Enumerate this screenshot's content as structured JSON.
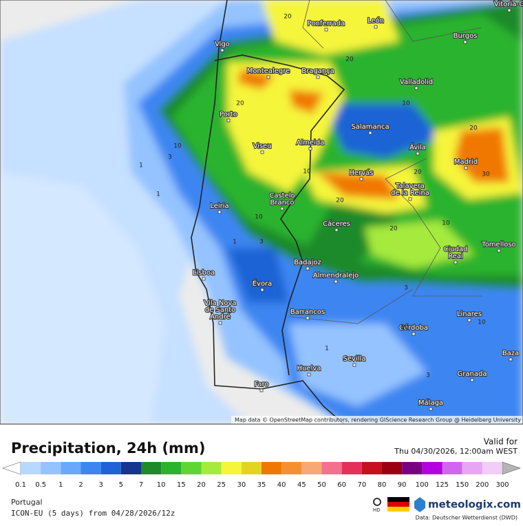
{
  "header": {
    "title": "Precipitation, 24h (mm)",
    "valid_label": "Valid for",
    "valid_time": "Thu 04/30/2026, 12:00am WEST"
  },
  "map": {
    "attribution": "Map data © OpenStreetMap contributors, rendering GIScience Research Group @ Heidelberg University",
    "cities": [
      {
        "lines": [
          "Vitoria-G"
        ]
      },
      {
        "lines": [
          "Ponferrada"
        ]
      },
      {
        "lines": [
          "León"
        ]
      },
      {
        "lines": [
          "Vigo"
        ]
      },
      {
        "lines": [
          "Burgos"
        ]
      },
      {
        "lines": [
          "Montealegre"
        ]
      },
      {
        "lines": [
          "Bragança"
        ]
      },
      {
        "lines": [
          "Valladolid"
        ]
      },
      {
        "lines": [
          "Porto"
        ]
      },
      {
        "lines": [
          "Salamanca"
        ]
      },
      {
        "lines": [
          "Viseu"
        ]
      },
      {
        "lines": [
          "Almeida"
        ]
      },
      {
        "lines": [
          "Ávila"
        ]
      },
      {
        "lines": [
          "Madrid"
        ]
      },
      {
        "lines": [
          "Hervás"
        ]
      },
      {
        "lines": [
          "Talavera",
          "de la Reina"
        ]
      },
      {
        "lines": [
          "Castelo",
          "Branco"
        ]
      },
      {
        "lines": [
          "Leiria"
        ]
      },
      {
        "lines": [
          "Cáceres"
        ]
      },
      {
        "lines": [
          "Ciudad",
          "Real"
        ]
      },
      {
        "lines": [
          "Tomelloso"
        ]
      },
      {
        "lines": [
          "Badajoz"
        ]
      },
      {
        "lines": [
          "Lisboa"
        ]
      },
      {
        "lines": [
          "Almendralejo"
        ]
      },
      {
        "lines": [
          "Évora"
        ]
      },
      {
        "lines": [
          "Vila Nova",
          "de Santo",
          "André"
        ]
      },
      {
        "lines": [
          "Barrancos"
        ]
      },
      {
        "lines": [
          "Linares"
        ]
      },
      {
        "lines": [
          "Córdoba"
        ]
      },
      {
        "lines": [
          "Baza"
        ]
      },
      {
        "lines": [
          "Sevilla"
        ]
      },
      {
        "lines": [
          "Huelva"
        ]
      },
      {
        "lines": [
          "Granada"
        ]
      },
      {
        "lines": [
          "Faro"
        ]
      },
      {
        "lines": [
          "Málaga"
        ]
      }
    ],
    "contour_labels": [
      20,
      20,
      20,
      10,
      1,
      10,
      3,
      1,
      20,
      10,
      10,
      20,
      20,
      30,
      20,
      10,
      1,
      3,
      10,
      3,
      1,
      3,
      10
    ]
  },
  "legend": {
    "ticks": [
      0.1,
      0.5,
      1,
      2,
      3,
      5,
      7,
      10,
      15,
      20,
      25,
      30,
      35,
      40,
      45,
      50,
      60,
      70,
      80,
      90,
      100,
      125,
      150,
      200,
      300
    ],
    "colors": [
      "#b7d8ff",
      "#94c3ff",
      "#6aa8ff",
      "#3d86f2",
      "#1f63d6",
      "#15358f",
      "#1e8a2a",
      "#2ab32d",
      "#5fd533",
      "#a6ea3c",
      "#f5f53a",
      "#e2d420",
      "#f07800",
      "#f59030",
      "#f7a874",
      "#f3708e",
      "#e5305a",
      "#c6101e",
      "#9c0010",
      "#7a0082",
      "#b400e0",
      "#d066ef",
      "#e7a6f4",
      "#f1cdf8"
    ],
    "over_color": "#b4b4b4",
    "under_color": "#ffffff"
  },
  "footer": {
    "region": "Portugal",
    "model": "ICON-EU (5 days) from 04/28/2026/12z",
    "hd": "HD",
    "brand": "meteologix.com",
    "source": "Data: Deutscher Wetterdienst (DWD)"
  }
}
